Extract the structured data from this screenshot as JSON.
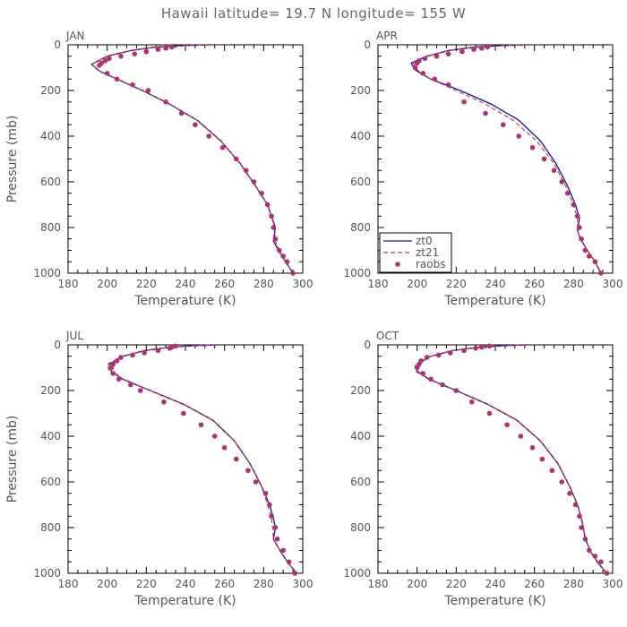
{
  "title": "Hawaii  latitude= 19.7 N longitude= 155 W",
  "chart_data": [
    {
      "type": "line",
      "panel": "JAN",
      "xlabel": "Temperature (K)",
      "ylabel": "Pressure (mb)",
      "xlim": [
        180,
        300
      ],
      "ylim": [
        1000,
        0
      ],
      "xticks": [
        180,
        200,
        220,
        240,
        260,
        280,
        300
      ],
      "yticks": [
        0,
        200,
        400,
        600,
        800,
        1000
      ],
      "legend": false,
      "series": [
        {
          "name": "zt0",
          "style": "solid",
          "color": "#1a1ab4",
          "x": [
            252,
            240,
            225,
            212,
            200,
            192,
            196,
            205,
            218,
            232,
            246,
            258,
            268,
            276,
            282,
            284,
            286,
            285,
            289,
            292,
            295
          ],
          "y": [
            0,
            3,
            10,
            25,
            50,
            85,
            115,
            150,
            200,
            260,
            330,
            420,
            520,
            620,
            700,
            750,
            800,
            860,
            920,
            960,
            1000
          ]
        },
        {
          "name": "zt21",
          "style": "dashed",
          "color": "#e03030",
          "x": [
            252,
            240,
            225,
            212,
            200,
            192,
            196,
            205,
            218,
            232,
            246,
            258,
            268,
            276,
            282,
            284,
            285.5,
            286,
            289,
            292,
            295
          ],
          "y": [
            0,
            3,
            10,
            25,
            50,
            85,
            115,
            150,
            200,
            260,
            330,
            420,
            520,
            620,
            700,
            750,
            800,
            860,
            920,
            960,
            1000
          ]
        },
        {
          "name": "raobs",
          "style": "points",
          "color": "#b03070",
          "x": [
            233,
            230,
            226,
            220,
            214,
            207,
            201,
            199,
            197,
            196,
            200,
            205,
            213,
            221,
            230,
            238,
            245,
            252,
            259,
            266,
            271,
            275,
            279,
            282,
            284,
            285,
            286,
            288,
            290,
            292,
            295
          ],
          "y": [
            10,
            15,
            20,
            30,
            40,
            50,
            60,
            70,
            80,
            90,
            125,
            150,
            175,
            200,
            250,
            300,
            350,
            400,
            450,
            500,
            550,
            600,
            650,
            700,
            750,
            800,
            850,
            900,
            925,
            950,
            1000
          ]
        }
      ]
    },
    {
      "type": "line",
      "panel": "APR",
      "xlabel": "Temperature (K)",
      "ylabel": "",
      "xlim": [
        180,
        300
      ],
      "ylim": [
        1000,
        0
      ],
      "xticks": [
        180,
        200,
        220,
        240,
        260,
        280,
        300
      ],
      "yticks": [
        0,
        200,
        400,
        600,
        800,
        1000
      ],
      "legend": true,
      "series": [
        {
          "name": "zt0",
          "style": "solid",
          "color": "#1a1ab4",
          "x": [
            256,
            244,
            230,
            216,
            205,
            197,
            199,
            207,
            222,
            238,
            252,
            263,
            271,
            277,
            281,
            283,
            282,
            283,
            287,
            291,
            294
          ],
          "y": [
            0,
            3,
            10,
            25,
            50,
            80,
            110,
            150,
            200,
            260,
            330,
            420,
            520,
            620,
            700,
            760,
            810,
            840,
            900,
            950,
            1000
          ]
        },
        {
          "name": "zt21",
          "style": "dashed",
          "color": "#e03030",
          "x": [
            256,
            244,
            230,
            216,
            205,
            198,
            200,
            207,
            220,
            235,
            249,
            261,
            270,
            276,
            280,
            282,
            282,
            283,
            287,
            291,
            294
          ],
          "y": [
            0,
            3,
            10,
            25,
            50,
            80,
            110,
            150,
            200,
            260,
            330,
            420,
            520,
            620,
            700,
            760,
            810,
            840,
            900,
            950,
            1000
          ]
        },
        {
          "name": "raobs",
          "style": "points",
          "color": "#b03070",
          "x": [
            236,
            233,
            229,
            223,
            216,
            210,
            204,
            201,
            200,
            199,
            203,
            209,
            216,
            224,
            235,
            244,
            252,
            259,
            265,
            270,
            274,
            277,
            280,
            282,
            283,
            284,
            286,
            288,
            291,
            294
          ],
          "y": [
            10,
            15,
            20,
            30,
            40,
            50,
            60,
            70,
            80,
            100,
            125,
            150,
            175,
            250,
            300,
            350,
            400,
            450,
            500,
            550,
            600,
            650,
            700,
            750,
            800,
            850,
            900,
            925,
            950,
            1000
          ]
        }
      ]
    },
    {
      "type": "line",
      "panel": "JUL",
      "xlabel": "Temperature (K)",
      "ylabel": "Pressure (mb)",
      "xlim": [
        180,
        300
      ],
      "ylim": [
        1000,
        0
      ],
      "xticks": [
        180,
        200,
        220,
        240,
        260,
        280,
        300
      ],
      "yticks": [
        0,
        200,
        400,
        600,
        800,
        1000
      ],
      "legend": false,
      "series": [
        {
          "name": "zt0",
          "style": "solid",
          "color": "#1a1ab4",
          "x": [
            256,
            245,
            232,
            219,
            208,
            201,
            202,
            208,
            222,
            239,
            254,
            265,
            273,
            279,
            283,
            285,
            286,
            285,
            289,
            293,
            297
          ],
          "y": [
            0,
            3,
            10,
            25,
            50,
            85,
            115,
            150,
            200,
            260,
            330,
            420,
            520,
            620,
            700,
            760,
            800,
            850,
            910,
            960,
            1000
          ]
        },
        {
          "name": "zt21",
          "style": "dashed",
          "color": "#e03030",
          "x": [
            256,
            245,
            232,
            219,
            208,
            200,
            201,
            208,
            222,
            239,
            254,
            265,
            273,
            279,
            282,
            284,
            284.5,
            285,
            289,
            293,
            297
          ],
          "y": [
            0,
            3,
            10,
            25,
            50,
            85,
            115,
            150,
            200,
            260,
            330,
            420,
            520,
            620,
            700,
            760,
            800,
            850,
            910,
            960,
            1000
          ]
        },
        {
          "name": "raobs",
          "style": "points",
          "color": "#b03070",
          "x": [
            235,
            233,
            232,
            226,
            219,
            213,
            207,
            205,
            203,
            202,
            203,
            206,
            212,
            217,
            229,
            239,
            248,
            255,
            260,
            266,
            272,
            276,
            281,
            283,
            284,
            286,
            287,
            290,
            293,
            296
          ],
          "y": [
            5,
            10,
            15,
            25,
            35,
            45,
            55,
            70,
            85,
            100,
            125,
            150,
            175,
            200,
            250,
            300,
            350,
            400,
            450,
            500,
            550,
            600,
            650,
            700,
            750,
            800,
            850,
            900,
            950,
            1000
          ]
        }
      ]
    },
    {
      "type": "line",
      "panel": "OCT",
      "xlabel": "Temperature (K)",
      "ylabel": "",
      "xlim": [
        180,
        300
      ],
      "ylim": [
        1000,
        0
      ],
      "xticks": [
        180,
        200,
        220,
        240,
        260,
        280,
        300
      ],
      "yticks": [
        0,
        200,
        400,
        600,
        800,
        1000
      ],
      "legend": false,
      "series": [
        {
          "name": "zt0",
          "style": "solid",
          "color": "#1a1ab4",
          "x": [
            256,
            245,
            232,
            218,
            207,
            200,
            200,
            206,
            220,
            236,
            251,
            263,
            272,
            278,
            282,
            284,
            285,
            286,
            289,
            293,
            297
          ],
          "y": [
            0,
            3,
            10,
            25,
            50,
            85,
            115,
            150,
            200,
            260,
            330,
            420,
            520,
            620,
            700,
            760,
            800,
            850,
            910,
            960,
            1000
          ]
        },
        {
          "name": "zt21",
          "style": "dashed",
          "color": "#e03030",
          "x": [
            256,
            245,
            232,
            218,
            207,
            199,
            199,
            206,
            220,
            236,
            251,
            263,
            272,
            278,
            282,
            284,
            285,
            286,
            289,
            293,
            297
          ],
          "y": [
            0,
            3,
            10,
            25,
            50,
            85,
            115,
            150,
            200,
            260,
            330,
            420,
            520,
            620,
            700,
            760,
            800,
            850,
            910,
            960,
            1000
          ]
        },
        {
          "name": "raobs",
          "style": "points",
          "color": "#b03070",
          "x": [
            237,
            233,
            230,
            224,
            217,
            211,
            205,
            202,
            201,
            200,
            203,
            207,
            213,
            220,
            228,
            237,
            246,
            253,
            259,
            264,
            269,
            274,
            278,
            281,
            283,
            284,
            286,
            288,
            291,
            294,
            297
          ],
          "y": [
            5,
            10,
            15,
            25,
            35,
            45,
            55,
            70,
            85,
            100,
            125,
            150,
            175,
            200,
            250,
            300,
            350,
            400,
            450,
            500,
            550,
            600,
            650,
            700,
            750,
            800,
            850,
            900,
            925,
            950,
            1000
          ]
        }
      ]
    }
  ]
}
